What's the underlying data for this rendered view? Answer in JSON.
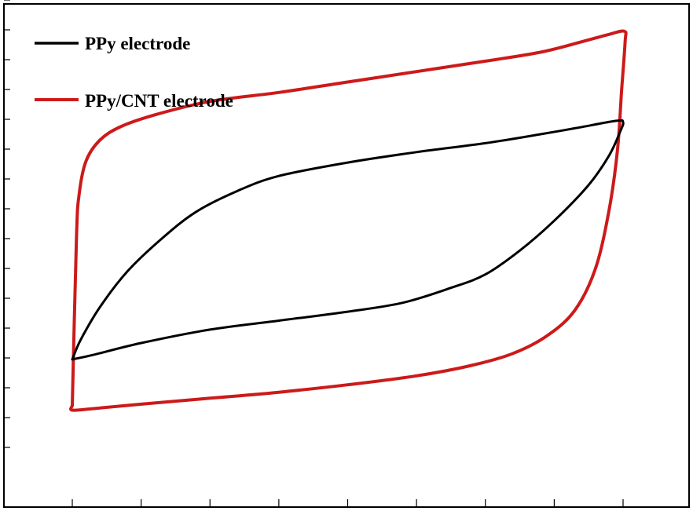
{
  "chart_data": {
    "type": "line",
    "title": "",
    "xlabel": "",
    "ylabel": "",
    "xlim": [
      0,
      8
    ],
    "ylim": [
      0,
      16
    ],
    "x_ticks": [
      0,
      1,
      2,
      3,
      4,
      5,
      6,
      7,
      8
    ],
    "y_ticks": [
      1,
      2,
      3,
      4,
      5,
      6,
      7,
      8,
      9,
      10,
      11,
      12,
      13,
      14,
      15,
      16
    ],
    "grid": false,
    "legend_position": "top-left",
    "series": [
      {
        "name": "PPy electrode",
        "color": "#000000",
        "points": [
          [
            0.0,
            3.95
          ],
          [
            0.12,
            4.6
          ],
          [
            0.4,
            5.7
          ],
          [
            0.8,
            6.9
          ],
          [
            1.3,
            8.0
          ],
          [
            1.8,
            8.9
          ],
          [
            2.4,
            9.6
          ],
          [
            3.0,
            10.1
          ],
          [
            4.0,
            10.55
          ],
          [
            5.0,
            10.9
          ],
          [
            6.0,
            11.2
          ],
          [
            6.8,
            11.5
          ],
          [
            7.3,
            11.7
          ],
          [
            7.9,
            11.95
          ],
          [
            8.0,
            11.9
          ],
          [
            7.96,
            11.6
          ],
          [
            7.8,
            10.8
          ],
          [
            7.5,
            9.8
          ],
          [
            7.0,
            8.6
          ],
          [
            6.5,
            7.6
          ],
          [
            6.0,
            6.8
          ],
          [
            5.5,
            6.35
          ],
          [
            4.8,
            5.85
          ],
          [
            4.0,
            5.55
          ],
          [
            3.0,
            5.25
          ],
          [
            2.0,
            4.95
          ],
          [
            1.0,
            4.5
          ],
          [
            0.3,
            4.1
          ],
          [
            0.0,
            3.95
          ]
        ]
      },
      {
        "name": "PPy/CNT electrode",
        "color": "#cc1a1a",
        "points": [
          [
            0.0,
            2.4
          ],
          [
            0.06,
            8.0
          ],
          [
            0.1,
            9.5
          ],
          [
            0.2,
            10.6
          ],
          [
            0.4,
            11.3
          ],
          [
            0.7,
            11.75
          ],
          [
            1.2,
            12.15
          ],
          [
            2.0,
            12.6
          ],
          [
            3.0,
            12.9
          ],
          [
            4.0,
            13.25
          ],
          [
            5.0,
            13.6
          ],
          [
            6.0,
            13.95
          ],
          [
            6.8,
            14.25
          ],
          [
            7.4,
            14.6
          ],
          [
            7.8,
            14.85
          ],
          [
            8.02,
            14.95
          ],
          [
            8.03,
            14.6
          ],
          [
            7.98,
            13.0
          ],
          [
            7.92,
            11.0
          ],
          [
            7.8,
            9.0
          ],
          [
            7.6,
            7.0
          ],
          [
            7.3,
            5.6
          ],
          [
            6.9,
            4.75
          ],
          [
            6.4,
            4.15
          ],
          [
            5.8,
            3.75
          ],
          [
            5.0,
            3.4
          ],
          [
            4.0,
            3.1
          ],
          [
            3.0,
            2.85
          ],
          [
            2.0,
            2.65
          ],
          [
            1.0,
            2.45
          ],
          [
            0.3,
            2.3
          ],
          [
            0.0,
            2.25
          ],
          [
            0.0,
            2.4
          ]
        ]
      }
    ]
  }
}
